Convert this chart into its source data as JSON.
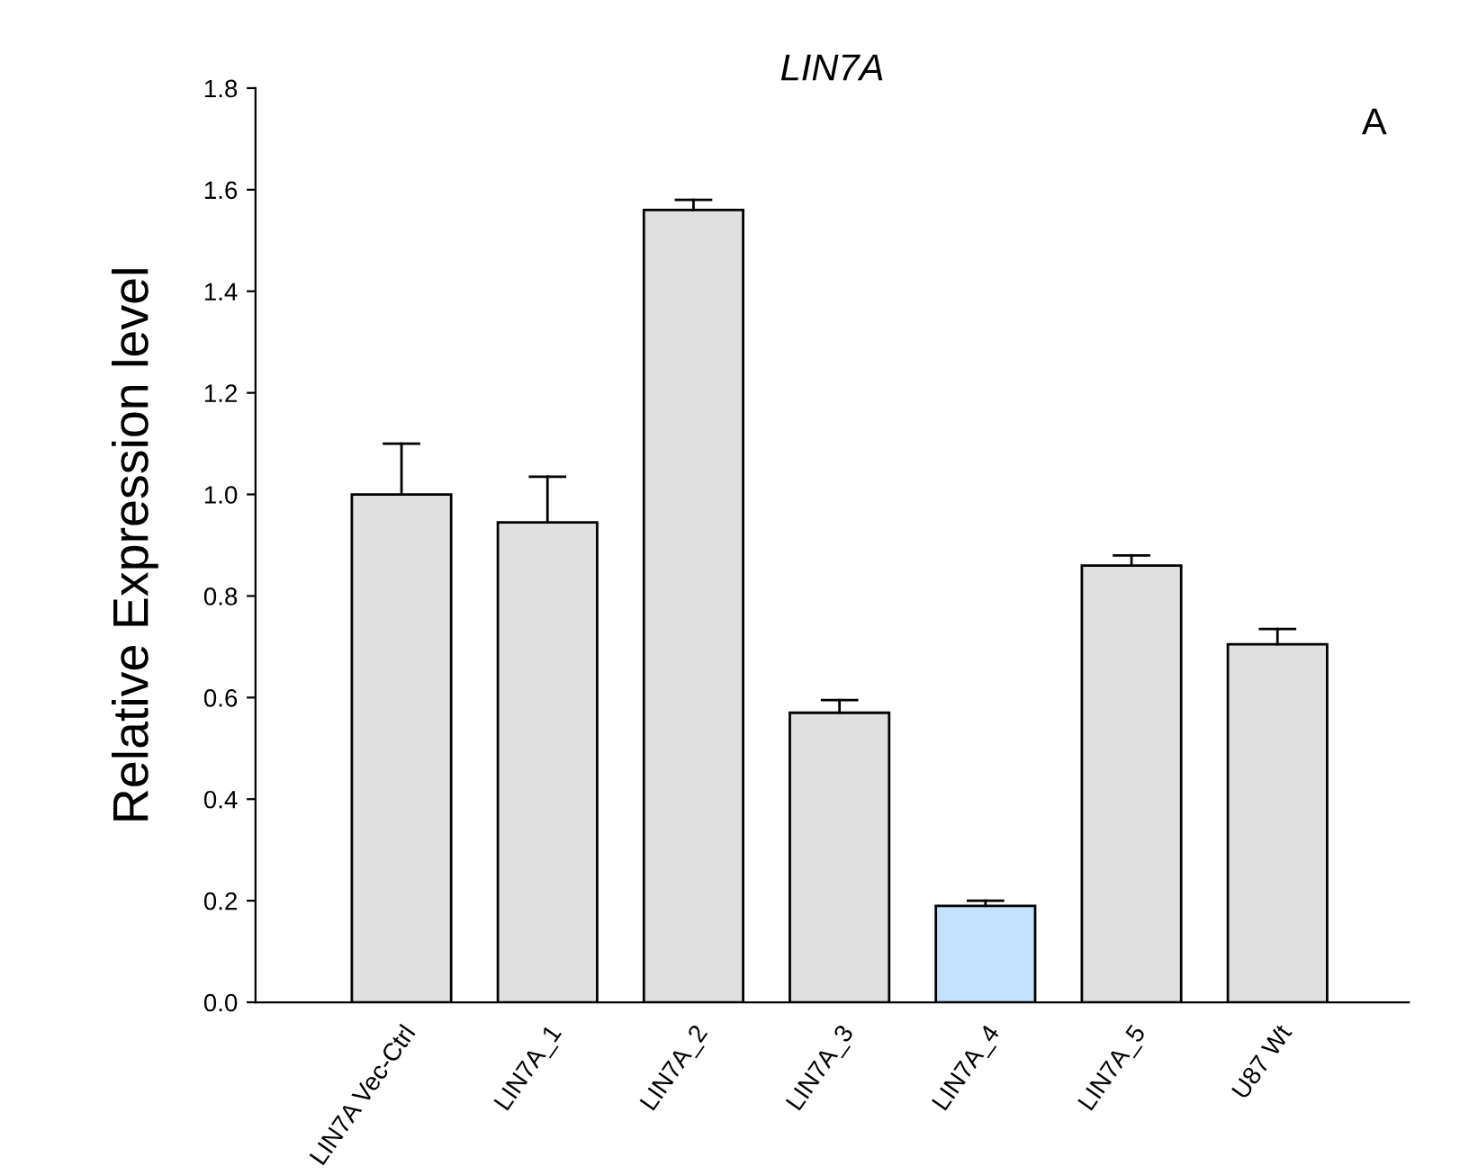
{
  "chart_data": {
    "type": "bar",
    "title": "LIN7A",
    "ylabel": "Relative Expression level",
    "annotations": [
      "A"
    ],
    "categories": [
      "LIN7A Vec-Ctrl",
      "LIN7A_1",
      "LIN7A_2",
      "LIN7A_3",
      "LIN7A_4",
      "LIN7A_5",
      "U87 Wt"
    ],
    "values": [
      1.0,
      0.945,
      1.56,
      0.57,
      0.19,
      0.86,
      0.705
    ],
    "errors": [
      [
        1.0,
        1.1
      ],
      [
        0.945,
        1.035
      ],
      [
        1.56,
        1.58
      ],
      [
        0.57,
        0.595
      ],
      [
        0.19,
        0.2
      ],
      [
        0.86,
        0.88
      ],
      [
        0.705,
        0.735
      ]
    ],
    "colors": [
      "#e0e0e0",
      "#e0e0e0",
      "#e0e0e0",
      "#e0e0e0",
      "#c5e1fb",
      "#e0e0e0",
      "#e0e0e0"
    ],
    "ylim": [
      0,
      1.8
    ],
    "yticks": [
      {
        "value": 0,
        "label": "0.0"
      },
      {
        "value": 0.2,
        "label": "0.2"
      },
      {
        "value": 0.4,
        "label": "0.4"
      },
      {
        "value": 0.6,
        "label": "0.6"
      },
      {
        "value": 0.8,
        "label": "0.8"
      },
      {
        "value": 1.0,
        "label": "1.0"
      },
      {
        "value": 1.2,
        "label": "1.2"
      },
      {
        "value": 1.4,
        "label": "1.4"
      },
      {
        "value": 1.6,
        "label": "1.6"
      },
      {
        "value": 1.8,
        "label": "1.8"
      }
    ],
    "grid": false,
    "legend": false
  }
}
